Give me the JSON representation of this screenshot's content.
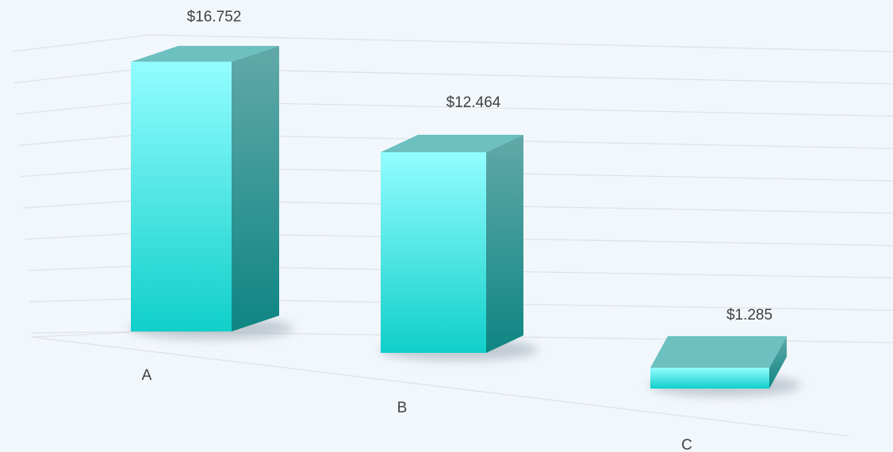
{
  "chart_data": {
    "type": "bar3d",
    "categories": [
      "A",
      "B",
      "C"
    ],
    "values": [
      16.752,
      12.464,
      1.285
    ],
    "value_labels": [
      "$16.752",
      "$12.464",
      "$1.285"
    ],
    "color": "#1fd3cf",
    "ylim": [
      0,
      18
    ],
    "yticks": [
      0,
      2,
      4,
      6,
      8,
      10,
      12,
      14,
      16,
      18
    ],
    "grid": true
  }
}
